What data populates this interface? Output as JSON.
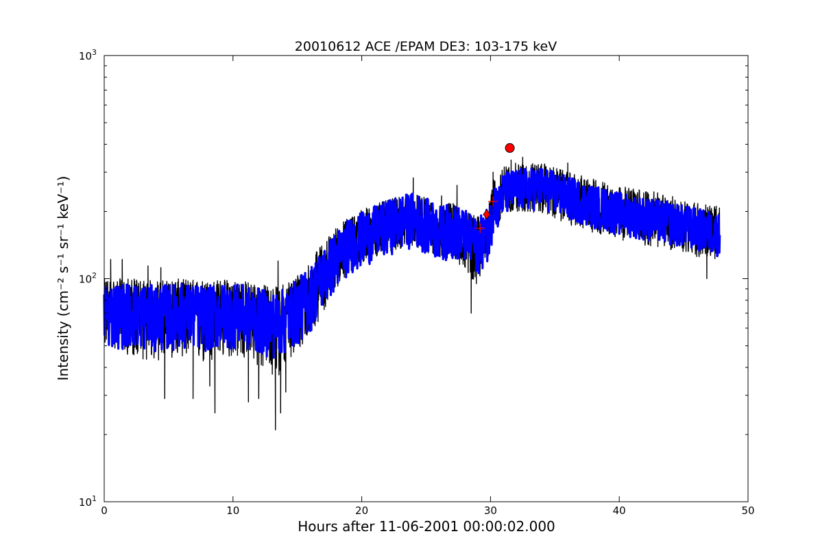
{
  "chart_data": {
    "type": "line",
    "title": "20010612 ACE /EPAM DE3: 103-175 keV",
    "xlabel": "Hours after 11-06-2001 00:00:02.000",
    "ylabel": "Intensity (cm⁻² s⁻¹ sr⁻¹ keV⁻¹)",
    "xlim": [
      0,
      50
    ],
    "ylim": [
      10,
      1000
    ],
    "yscale": "log",
    "grid": false,
    "x_ticks": [
      "0",
      "10",
      "20",
      "30",
      "40",
      "50"
    ],
    "y_ticks": [
      {
        "base": "10",
        "exp": "1"
      },
      {
        "base": "10",
        "exp": "2"
      },
      {
        "base": "10",
        "exp": "3"
      }
    ],
    "colors": {
      "raw": "#000000",
      "smoothed": "#0000ff",
      "marker": "#ff0000"
    },
    "series": [
      {
        "style": "black raw intensity",
        "x": [
          0,
          2,
          4,
          6,
          8,
          10,
          12,
          13.3,
          14,
          15,
          16,
          17,
          18,
          19,
          20,
          21,
          22,
          23,
          24,
          25,
          26,
          27,
          28,
          28.5,
          29,
          29.5,
          30,
          30.3,
          30.6,
          31,
          32,
          34,
          36,
          38,
          40,
          42,
          44,
          46,
          47.8
        ],
        "y": [
          72,
          72,
          70,
          72,
          70,
          72,
          68,
          65,
          68,
          75,
          85,
          105,
          125,
          145,
          155,
          165,
          175,
          185,
          190,
          180,
          165,
          170,
          160,
          150,
          145,
          155,
          175,
          230,
          210,
          245,
          255,
          260,
          235,
          215,
          200,
          190,
          180,
          170,
          160
        ],
        "min": [
          50,
          45,
          42,
          45,
          40,
          45,
          40,
          35,
          40,
          45,
          55,
          70,
          90,
          105,
          115,
          120,
          130,
          135,
          140,
          130,
          120,
          120,
          110,
          100,
          95,
          105,
          130,
          175,
          165,
          195,
          200,
          195,
          175,
          160,
          150,
          140,
          135,
          125,
          120
        ],
        "max": [
          100,
          100,
          98,
          100,
          98,
          100,
          95,
          92,
          95,
          105,
          120,
          145,
          170,
          190,
          205,
          215,
          225,
          235,
          240,
          230,
          215,
          220,
          205,
          195,
          190,
          200,
          225,
          300,
          270,
          320,
          330,
          330,
          300,
          280,
          260,
          250,
          235,
          220,
          210
        ],
        "spikes": [
          [
            0.5,
            122
          ],
          [
            1.4,
            122
          ],
          [
            3.4,
            114
          ],
          [
            4.4,
            112
          ],
          [
            4.7,
            29
          ],
          [
            6.9,
            29
          ],
          [
            8.2,
            33
          ],
          [
            8.6,
            25
          ],
          [
            11.2,
            28
          ],
          [
            12.0,
            29
          ],
          [
            13.3,
            21
          ],
          [
            13.5,
            120
          ],
          [
            13.7,
            25
          ],
          [
            14.1,
            31
          ],
          [
            24.0,
            283
          ],
          [
            26.2,
            235
          ],
          [
            27.4,
            262
          ],
          [
            28.5,
            70
          ],
          [
            28.9,
            95
          ],
          [
            30.2,
            300
          ],
          [
            31.6,
            340
          ],
          [
            32.5,
            350
          ],
          [
            36.0,
            330
          ],
          [
            35.5,
            185
          ],
          [
            37.5,
            195
          ],
          [
            44.0,
            135
          ],
          [
            45.6,
            145
          ],
          [
            46.8,
            100
          ]
        ]
      },
      {
        "style": "blue smoothed intensity",
        "x": [
          0,
          2,
          4,
          6,
          8,
          10,
          12,
          13.3,
          14,
          15,
          16,
          17,
          18,
          19,
          20,
          21,
          22,
          23,
          24,
          25,
          26,
          27,
          28,
          28.5,
          29,
          29.5,
          30,
          30.3,
          30.6,
          31,
          32,
          34,
          36,
          38,
          40,
          42,
          44,
          46,
          47.8
        ],
        "y": [
          72,
          72,
          70,
          72,
          70,
          72,
          68,
          65,
          68,
          75,
          85,
          105,
          125,
          145,
          155,
          165,
          175,
          185,
          190,
          180,
          165,
          170,
          160,
          150,
          145,
          155,
          175,
          230,
          210,
          245,
          255,
          260,
          235,
          215,
          200,
          190,
          180,
          170,
          160
        ],
        "spread": [
          0.33,
          0.33,
          0.33,
          0.33,
          0.33,
          0.33,
          0.33,
          0.33,
          0.33,
          0.33,
          0.33,
          0.3,
          0.3,
          0.28,
          0.28,
          0.28,
          0.28,
          0.28,
          0.28,
          0.28,
          0.28,
          0.28,
          0.28,
          0.28,
          0.28,
          0.28,
          0.28,
          0.22,
          0.22,
          0.22,
          0.22,
          0.22,
          0.22,
          0.22,
          0.22,
          0.22,
          0.22,
          0.22,
          0.22
        ]
      }
    ],
    "markers": [
      {
        "shape": "plus",
        "x": 29.2,
        "y": 168
      },
      {
        "shape": "plus",
        "x": 30.2,
        "y": 222
      },
      {
        "shape": "diamond",
        "x": 29.7,
        "y": 194
      },
      {
        "shape": "circle",
        "x": 31.5,
        "y": 385
      }
    ]
  }
}
